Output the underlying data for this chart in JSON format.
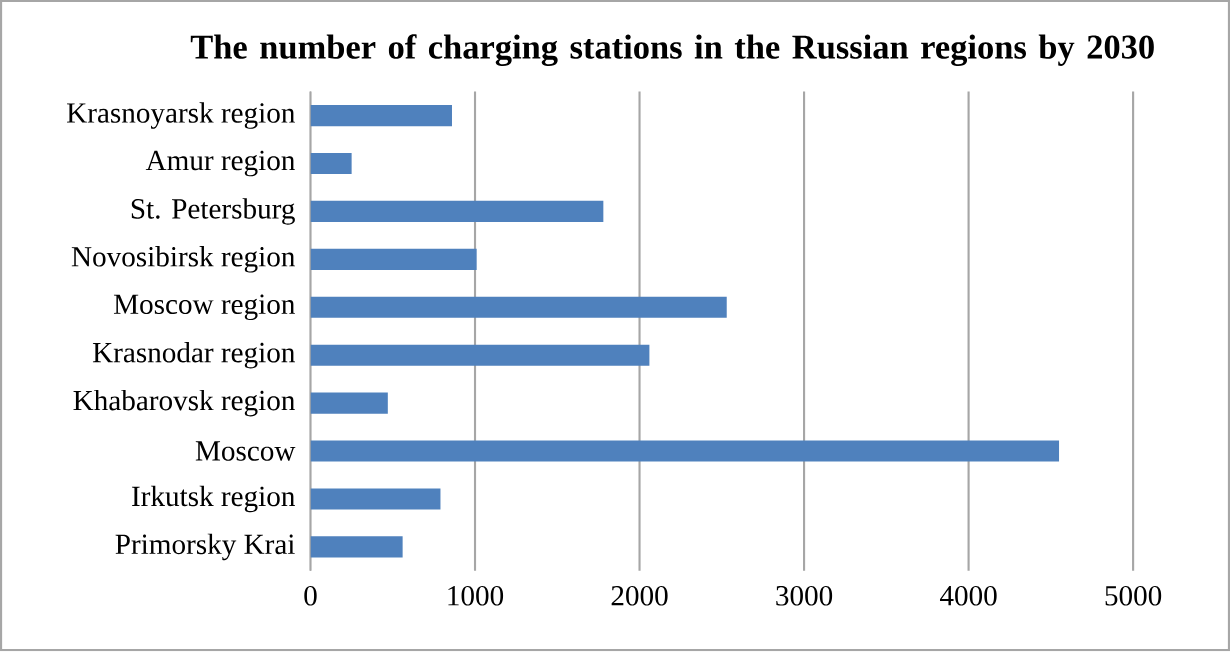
{
  "chart_data": {
    "type": "bar",
    "orientation": "horizontal",
    "title": "The number of charging stations in the Russian regions  by 2030",
    "categories": [
      "Krasnoyarsk region",
      "Amur region",
      "St. Petersburg",
      "Novosibirsk region",
      "Moscow region",
      "Krasnodar region",
      "Khabarovsk region",
      "Moscow",
      "Irkutsk region",
      "Primorsky Krai"
    ],
    "values": [
      860,
      250,
      1780,
      1010,
      2530,
      2060,
      470,
      4550,
      790,
      560
    ],
    "color": "#4f81bd",
    "xlim": [
      0,
      5000
    ],
    "xticks": [
      0,
      1000,
      2000,
      3000,
      4000,
      5000
    ],
    "grid": "x"
  }
}
